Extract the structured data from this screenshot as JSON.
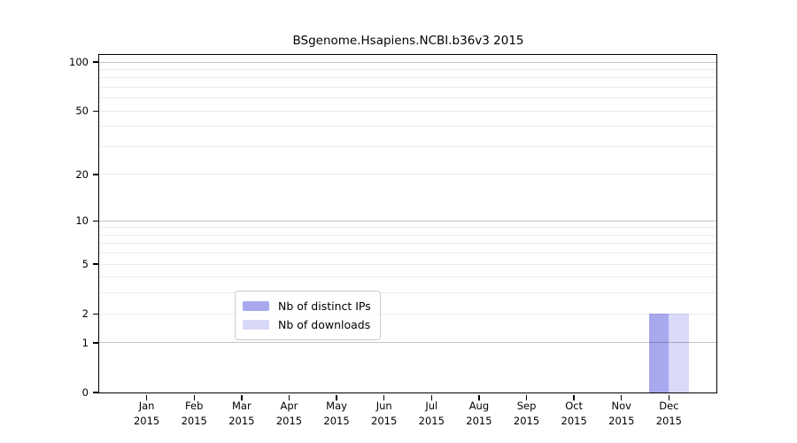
{
  "chart_data": {
    "type": "bar",
    "title": "BSgenome.Hsapiens.NCBI.b36v3 2015",
    "categories": [
      "Jan",
      "Feb",
      "Mar",
      "Apr",
      "May",
      "Jun",
      "Jul",
      "Aug",
      "Sep",
      "Oct",
      "Nov",
      "Dec"
    ],
    "x_year_label": "2015",
    "series": [
      {
        "name": "Nb of distinct IPs",
        "color": "#a8a8ef",
        "values": [
          0,
          0,
          0,
          0,
          0,
          0,
          0,
          0,
          0,
          0,
          0,
          2
        ]
      },
      {
        "name": "Nb of downloads",
        "color": "#d9d9f8",
        "values": [
          0,
          0,
          0,
          0,
          0,
          0,
          0,
          0,
          0,
          0,
          0,
          2
        ]
      }
    ],
    "yscale": "log1p",
    "ylim": [
      0,
      110
    ],
    "y_ticks": [
      0,
      1,
      2,
      5,
      10,
      20,
      50,
      100
    ],
    "y_major_gridlines": [
      1,
      10,
      100
    ],
    "y_minor_gridlines": [
      2,
      3,
      4,
      5,
      6,
      7,
      8,
      9,
      20,
      30,
      40,
      50,
      60,
      70,
      80,
      90
    ],
    "grid": true,
    "legend_position": "lower center"
  },
  "colors": {
    "background": "#ffffff",
    "spine": "#000000",
    "legend_border": "#cccccc",
    "distinct_ips_bar": "#a8a8ef",
    "downloads_bar": "#d9d9f8"
  }
}
